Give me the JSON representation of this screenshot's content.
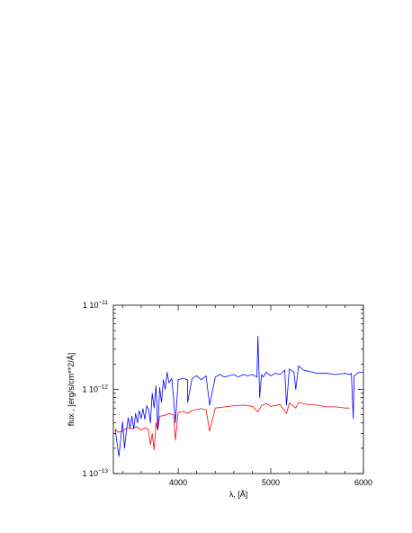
{
  "chart_data": {
    "type": "line",
    "title": "",
    "xlabel": "λ, [Å]",
    "ylabel": "flux , [erg/s/cm**2/Å]",
    "xlim": [
      3300,
      6000
    ],
    "ylim": [
      1e-13,
      1e-11
    ],
    "yscale": "log",
    "grid": false,
    "legend": "none",
    "x_ticks": [
      {
        "value": 4000,
        "label": "4000"
      },
      {
        "value": 5000,
        "label": "5000"
      },
      {
        "value": 6000,
        "label": "6000"
      }
    ],
    "y_ticks": [
      {
        "value": 1e-13,
        "label_mantissa": "1",
        "label_base": "10",
        "label_exp": "−13"
      },
      {
        "value": 1e-12,
        "label_mantissa": "1",
        "label_base": "10",
        "label_exp": "−12"
      },
      {
        "value": 1e-11,
        "label_mantissa": "1",
        "label_base": "10",
        "label_exp": "−11"
      }
    ],
    "series": [
      {
        "color": "#ff0000",
        "x": [
          3320,
          3350,
          3400,
          3450,
          3500,
          3550,
          3600,
          3650,
          3680,
          3700,
          3720,
          3740,
          3760,
          3780,
          3800,
          3850,
          3900,
          3950,
          3970,
          4000,
          4050,
          4100,
          4150,
          4200,
          4250,
          4300,
          4340,
          4400,
          4500,
          4600,
          4700,
          4800,
          4860,
          4900,
          4950,
          5000,
          5100,
          5170,
          5200,
          5270,
          5300,
          5400,
          5500,
          5600,
          5700,
          5800,
          5850
        ],
        "y": [
          3.4e-13,
          3.1e-13,
          3.2e-13,
          3.5e-13,
          3.4e-13,
          3.6e-13,
          3.3e-13,
          3.5e-13,
          3.3e-13,
          2.2e-13,
          3e-13,
          1.9e-13,
          4e-13,
          3.3e-13,
          4.8e-13,
          4.9e-13,
          5.2e-13,
          5e-13,
          2.5e-13,
          5.3e-13,
          5.5e-13,
          5.2e-13,
          5.6e-13,
          5.8e-13,
          5.9e-13,
          5.7e-13,
          3.2e-13,
          6e-13,
          6.2e-13,
          6.4e-13,
          6.5e-13,
          6.3e-13,
          5.4e-13,
          6.4e-13,
          6.8e-13,
          6.3e-13,
          6.6e-13,
          5.2e-13,
          6.9e-13,
          6e-13,
          7e-13,
          6.6e-13,
          6.5e-13,
          6.2e-13,
          6.2e-13,
          6e-13,
          6e-13
        ]
      },
      {
        "color": "#0000ff",
        "x": [
          3320,
          3340,
          3360,
          3380,
          3400,
          3420,
          3440,
          3460,
          3480,
          3500,
          3520,
          3540,
          3560,
          3580,
          3600,
          3620,
          3640,
          3660,
          3680,
          3700,
          3720,
          3740,
          3760,
          3780,
          3800,
          3820,
          3840,
          3860,
          3880,
          3900,
          3930,
          3950,
          3970,
          4000,
          4050,
          4100,
          4102,
          4150,
          4200,
          4250,
          4300,
          4340,
          4400,
          4450,
          4500,
          4550,
          4600,
          4650,
          4700,
          4750,
          4800,
          4850,
          4861,
          4880,
          4900,
          4920,
          4950,
          5000,
          5050,
          5100,
          5150,
          5170,
          5200,
          5250,
          5270,
          5300,
          5350,
          5400,
          5450,
          5500,
          5600,
          5700,
          5800,
          5850,
          5870,
          5890,
          5900,
          5950,
          6000
        ],
        "y": [
          3.3e-13,
          2.3e-13,
          1.6e-13,
          2.6e-13,
          4.1e-13,
          2e-13,
          3.2e-13,
          4.6e-13,
          3.5e-13,
          4.8e-13,
          3.4e-13,
          5.2e-13,
          4e-13,
          5.6e-13,
          4.5e-13,
          5.9e-13,
          4.4e-13,
          6.4e-13,
          5.8e-13,
          4e-13,
          9e-13,
          6e-13,
          1.1e-12,
          3.3e-13,
          1.05e-12,
          7e-13,
          1.3e-12,
          1e-12,
          1.6e-12,
          1.2e-12,
          1.35e-12,
          8e-13,
          4e-13,
          1.3e-12,
          1.35e-12,
          1.3e-12,
          7e-13,
          1.35e-12,
          1.45e-12,
          1.3e-12,
          1.45e-12,
          6.5e-13,
          1.4e-12,
          1.5e-12,
          1.4e-12,
          1.45e-12,
          1.5e-12,
          1.4e-12,
          1.5e-12,
          1.45e-12,
          1.5e-12,
          1.4e-12,
          4.3e-12,
          8e-13,
          1.5e-12,
          1.4e-12,
          1.6e-12,
          1.45e-12,
          1.55e-12,
          1.5e-12,
          1.7e-12,
          6.5e-13,
          1.75e-12,
          1.6e-12,
          1e-12,
          1.9e-12,
          1.7e-12,
          1.65e-12,
          1.6e-12,
          1.55e-12,
          1.55e-12,
          1.5e-12,
          1.55e-12,
          1.5e-12,
          1.55e-12,
          4.5e-13,
          1.45e-12,
          1.6e-12,
          1.6e-12
        ]
      }
    ]
  }
}
